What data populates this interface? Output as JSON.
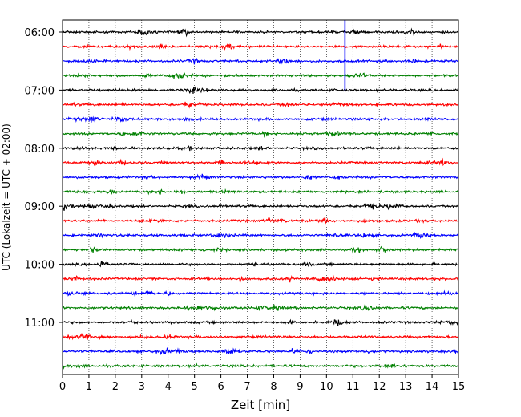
{
  "chart_data": {
    "type": "line",
    "xlabel": "Zeit  [min]",
    "ylabel": "UTC (Lokalzeit = UTC + 02:00)",
    "xlim": [
      0,
      15
    ],
    "x_ticks": [
      "0",
      "1",
      "2",
      "3",
      "4",
      "5",
      "6",
      "7",
      "8",
      "9",
      "10",
      "11",
      "12",
      "13",
      "14",
      "15"
    ],
    "y_ticks": [
      "06:00",
      "07:00",
      "08:00",
      "09:00",
      "10:00",
      "11:00"
    ],
    "grid": "vertical-dotted",
    "trace_start": "06:00",
    "trace_interval_min": 15,
    "trace_count": 24,
    "trace_colors": [
      "#000000",
      "#ff0000",
      "#0000ff",
      "#008000"
    ],
    "event_marker": {
      "x_min": 10.7,
      "color": "#0000ff"
    }
  }
}
